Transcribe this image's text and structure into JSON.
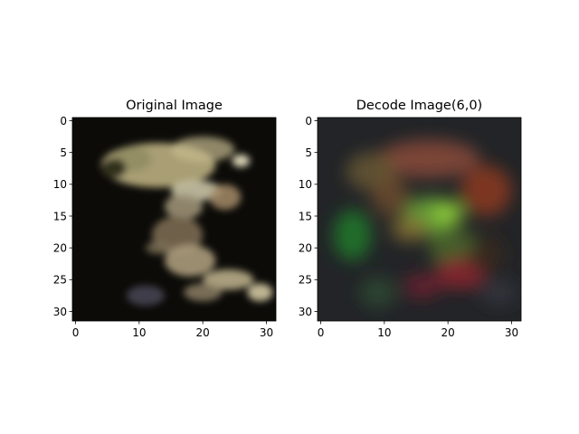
{
  "chart_data": [
    {
      "type": "image",
      "title": "Original Image",
      "xlim": [
        -0.5,
        31.5
      ],
      "ylim": [
        31.5,
        -0.5
      ],
      "xticks": [
        0,
        10,
        20,
        30
      ],
      "xtick_labels": [
        "0",
        "10",
        "20",
        "30"
      ],
      "yticks": [
        0,
        5,
        10,
        15,
        20,
        25,
        30
      ],
      "ytick_labels": [
        "0",
        "5",
        "10",
        "15",
        "20",
        "25",
        "30"
      ],
      "grid": false,
      "background": "#0c0b08",
      "blobs": [
        {
          "x": 13,
          "y": 7,
          "rx": 9,
          "ry": 3.5,
          "color": "#b2a77a",
          "opacity": 0.95
        },
        {
          "x": 20,
          "y": 4.5,
          "rx": 5,
          "ry": 2,
          "color": "#c6bb8e",
          "opacity": 0.7
        },
        {
          "x": 9,
          "y": 6,
          "rx": 3,
          "ry": 2,
          "color": "#8f8a62",
          "opacity": 0.8
        },
        {
          "x": 6,
          "y": 7.5,
          "rx": 2,
          "ry": 1.6,
          "color": "#2a2a1a",
          "opacity": 0.95
        },
        {
          "x": 26,
          "y": 6.3,
          "rx": 1.4,
          "ry": 1.0,
          "color": "#ece5c5",
          "opacity": 0.9
        },
        {
          "x": 19,
          "y": 11,
          "rx": 4,
          "ry": 1.6,
          "color": "#c9c4a6",
          "opacity": 0.9
        },
        {
          "x": 17,
          "y": 13.5,
          "rx": 3,
          "ry": 2,
          "color": "#9b9176",
          "opacity": 0.9
        },
        {
          "x": 23.5,
          "y": 12,
          "rx": 2.5,
          "ry": 2,
          "color": "#a38b67",
          "opacity": 0.85
        },
        {
          "x": 16,
          "y": 18,
          "rx": 4,
          "ry": 3,
          "color": "#7a6a52",
          "opacity": 0.9
        },
        {
          "x": 18,
          "y": 22,
          "rx": 4,
          "ry": 2.5,
          "color": "#ab9b7b",
          "opacity": 0.9
        },
        {
          "x": 13,
          "y": 20,
          "rx": 2,
          "ry": 1,
          "color": "#7c6f56",
          "opacity": 0.8
        },
        {
          "x": 24,
          "y": 25,
          "rx": 4,
          "ry": 1.6,
          "color": "#b9ad88",
          "opacity": 0.9
        },
        {
          "x": 20,
          "y": 27,
          "rx": 3,
          "ry": 1.4,
          "color": "#8b7e65",
          "opacity": 0.85
        },
        {
          "x": 29,
          "y": 27,
          "rx": 2,
          "ry": 1.4,
          "color": "#d0c6a1",
          "opacity": 0.9
        },
        {
          "x": 11,
          "y": 27.5,
          "rx": 3,
          "ry": 1.6,
          "color": "#4c4a5a",
          "opacity": 0.8
        }
      ]
    },
    {
      "type": "image",
      "title": "Decode Image(6,0)",
      "xlim": [
        -0.5,
        31.5
      ],
      "ylim": [
        31.5,
        -0.5
      ],
      "xticks": [
        0,
        10,
        20,
        30
      ],
      "xtick_labels": [
        "0",
        "10",
        "20",
        "30"
      ],
      "yticks": [
        0,
        5,
        10,
        15,
        20,
        25,
        30
      ],
      "ytick_labels": [
        "0",
        "5",
        "10",
        "15",
        "20",
        "25",
        "30"
      ],
      "grid": false,
      "background": "#222427",
      "blobs": [
        {
          "x": 17,
          "y": 6,
          "rx": 8,
          "ry": 3,
          "color": "#8a4a3b",
          "opacity": 0.85
        },
        {
          "x": 8,
          "y": 8,
          "rx": 4,
          "ry": 3,
          "color": "#6b5a32",
          "opacity": 0.8
        },
        {
          "x": 26,
          "y": 11,
          "rx": 4,
          "ry": 4,
          "color": "#8c3b20",
          "opacity": 0.85
        },
        {
          "x": 11,
          "y": 12,
          "rx": 3,
          "ry": 3,
          "color": "#7a5331",
          "opacity": 0.7
        },
        {
          "x": 5,
          "y": 18,
          "rx": 3,
          "ry": 4,
          "color": "#1f7a2c",
          "opacity": 0.85
        },
        {
          "x": 17,
          "y": 15,
          "rx": 4,
          "ry": 3,
          "color": "#66a236",
          "opacity": 0.9
        },
        {
          "x": 20,
          "y": 14.5,
          "rx": 2.5,
          "ry": 2,
          "color": "#8ccb3a",
          "opacity": 0.9
        },
        {
          "x": 14,
          "y": 17,
          "rx": 3,
          "ry": 2,
          "color": "#8a7235",
          "opacity": 0.8
        },
        {
          "x": 21,
          "y": 20,
          "rx": 4,
          "ry": 3,
          "color": "#4f6a2a",
          "opacity": 0.8
        },
        {
          "x": 22,
          "y": 24,
          "rx": 4,
          "ry": 2.5,
          "color": "#8d2330",
          "opacity": 0.85
        },
        {
          "x": 16,
          "y": 26,
          "rx": 3,
          "ry": 2,
          "color": "#6e2030",
          "opacity": 0.8
        },
        {
          "x": 26,
          "y": 21,
          "rx": 3,
          "ry": 3,
          "color": "#3d2a1e",
          "opacity": 0.7
        },
        {
          "x": 9,
          "y": 27,
          "rx": 3,
          "ry": 2.5,
          "color": "#2d4f33",
          "opacity": 0.7
        },
        {
          "x": 28,
          "y": 27,
          "rx": 3,
          "ry": 2,
          "color": "#3c3a4a",
          "opacity": 0.6
        }
      ]
    }
  ]
}
